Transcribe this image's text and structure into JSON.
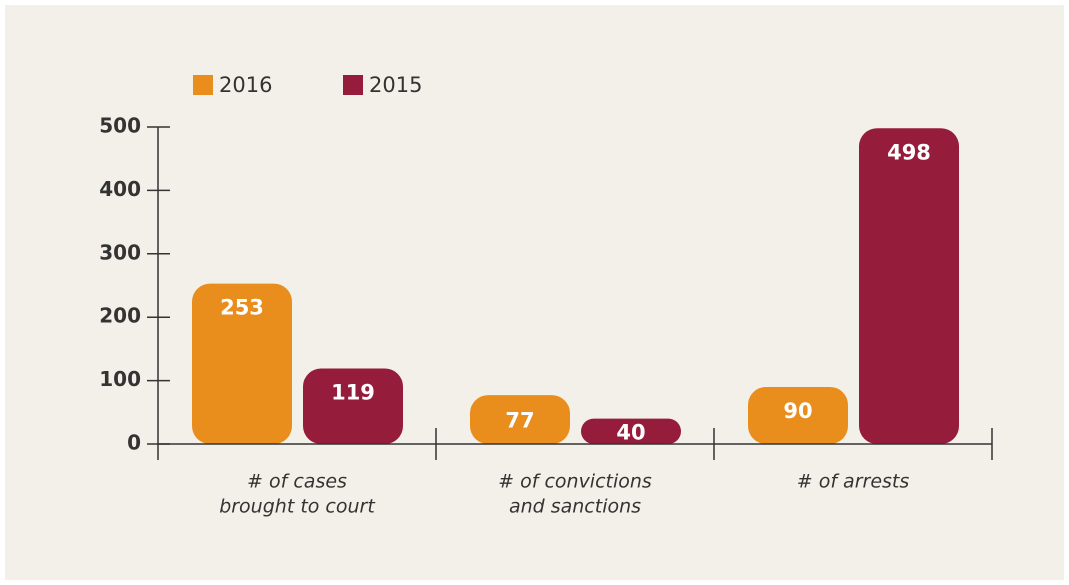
{
  "chart_data": {
    "type": "bar",
    "categories": [
      [
        "# of cases",
        "brought to court"
      ],
      [
        "# of convictions",
        "and sanctions"
      ],
      [
        "# of arrests"
      ]
    ],
    "series": [
      {
        "name": "2016",
        "color": "#e98d1d",
        "values": [
          253,
          77,
          90
        ]
      },
      {
        "name": "2015",
        "color": "#961c3b",
        "values": [
          119,
          40,
          498
        ]
      }
    ],
    "ylim": [
      0,
      500
    ],
    "yticks": [
      0,
      100,
      200,
      300,
      400,
      500
    ]
  }
}
